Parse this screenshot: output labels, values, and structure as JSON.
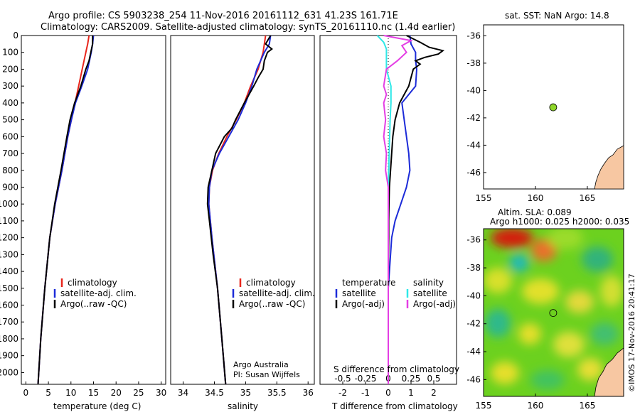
{
  "header": {
    "line1": "Argo profile: CS 5903238_254 11-Nov-2016 20161112_631 41.23S 161.71E",
    "line2": "Climatology: CARS2009. Satellite-adjusted climatology: synTS_20161110.nc (1.4d earlier)"
  },
  "watermark": "©IMOS 17-Nov-2016 20:41:17",
  "colors": {
    "clim": "#e8261c",
    "sat": "#1c2bd8",
    "argo": "#000000",
    "cyan": "#2ee8e8",
    "magenta": "#e43ee4",
    "land": "#f7c7a2"
  },
  "chart_data": [
    {
      "type": "line",
      "id": "temperature",
      "xlabel": "temperature (deg C)",
      "ylabel": "",
      "xlim": [
        -1,
        31
      ],
      "ylim": [
        2070,
        0
      ],
      "xticks": [
        "0",
        "5",
        "10",
        "15",
        "20",
        "25",
        "30"
      ],
      "yticks": [
        "0",
        "100",
        "200",
        "300",
        "400",
        "500",
        "600",
        "700",
        "800",
        "900",
        "1000",
        "1100",
        "1200",
        "1300",
        "1400",
        "1500",
        "1600",
        "1700",
        "1800",
        "1900",
        "2000"
      ],
      "legend": [
        "climatology",
        "satellite-adj. clim.",
        "Argo(..raw -QC)"
      ],
      "series": [
        {
          "name": "climatology",
          "depth": [
            0,
            50,
            100,
            200,
            300,
            400,
            500,
            600,
            800,
            1000,
            1200,
            1500,
            1800,
            2070
          ],
          "values": [
            14.0,
            13.7,
            13.3,
            12.5,
            11.7,
            10.9,
            10.1,
            9.3,
            8.0,
            6.5,
            5.3,
            4.2,
            3.3,
            2.7
          ]
        },
        {
          "name": "satellite-adj. clim.",
          "depth": [
            0,
            50,
            100,
            200,
            300,
            400,
            500,
            600,
            800,
            1000,
            1200,
            1500,
            1800,
            2070
          ],
          "values": [
            15.0,
            14.8,
            14.5,
            13.7,
            12.4,
            11.0,
            10.1,
            9.3,
            8.0,
            6.5,
            5.3,
            4.2,
            3.3,
            2.7
          ]
        },
        {
          "name": "Argo(..raw -QC)",
          "depth": [
            0,
            50,
            100,
            150,
            200,
            300,
            400,
            500,
            600,
            800,
            1000,
            1200,
            1500,
            1800,
            2070
          ],
          "values": [
            14.8,
            14.8,
            14.4,
            14.0,
            13.3,
            12.2,
            10.8,
            9.8,
            9.1,
            7.8,
            6.4,
            5.3,
            4.2,
            3.3,
            2.7
          ]
        }
      ]
    },
    {
      "type": "line",
      "id": "salinity",
      "xlabel": "salinity",
      "ylabel": "",
      "xlim": [
        33.8,
        36.1
      ],
      "ylim": [
        2070,
        0
      ],
      "xticks": [
        "34",
        "34.5",
        "35",
        "35.5",
        "36"
      ],
      "legend": [
        "climatology",
        "satellite-adj. clim.",
        "Argo(..raw -QC)"
      ],
      "annotation": [
        "Argo Australia",
        "PI: Susan Wijffels"
      ],
      "series": [
        {
          "name": "climatology",
          "depth": [
            0,
            100,
            200,
            300,
            400,
            500,
            600,
            700,
            800,
            900,
            1000,
            1200,
            1500,
            1800,
            2070
          ],
          "values": [
            35.32,
            35.28,
            35.2,
            35.08,
            34.98,
            34.85,
            34.7,
            34.57,
            34.47,
            34.42,
            34.41,
            34.46,
            34.55,
            34.62,
            34.68
          ]
        },
        {
          "name": "satellite-adj. clim.",
          "depth": [
            0,
            50,
            100,
            200,
            300,
            400,
            500,
            600,
            700,
            800,
            900,
            1000,
            1200,
            1500,
            1800,
            2070
          ],
          "values": [
            35.4,
            35.38,
            35.3,
            35.18,
            35.1,
            35.0,
            34.88,
            34.73,
            34.58,
            34.46,
            34.42,
            34.41,
            34.46,
            34.55,
            34.62,
            34.68
          ]
        },
        {
          "name": "Argo(..raw -QC)",
          "depth": [
            0,
            50,
            80,
            100,
            150,
            200,
            250,
            300,
            400,
            500,
            550,
            600,
            700,
            800,
            900,
            1000,
            1100,
            1200,
            1300,
            1500,
            1800,
            2070
          ],
          "values": [
            35.4,
            35.32,
            35.42,
            35.35,
            35.3,
            35.28,
            35.2,
            35.13,
            34.98,
            34.84,
            34.78,
            34.66,
            34.52,
            34.46,
            34.4,
            34.39,
            34.42,
            34.45,
            34.48,
            34.55,
            34.62,
            34.68
          ]
        }
      ]
    },
    {
      "type": "line",
      "id": "differences",
      "xlabel": "T difference from climatology",
      "x2label": "S difference from climatology",
      "xlim": [
        -3,
        3
      ],
      "ylim": [
        2070,
        0
      ],
      "xticks": [
        "-2",
        "-1",
        "0",
        "1",
        "2"
      ],
      "x2ticks": [
        "-0.5",
        "-0.25",
        "0",
        "0.25",
        "0.5"
      ],
      "legend_temperature": {
        "title": "temperature",
        "items": [
          "satellite",
          "Argo(-adj)"
        ]
      },
      "legend_salinity": {
        "title": "salinity",
        "items": [
          "satellite",
          "Argo(-adj)"
        ]
      },
      "series": [
        {
          "name": "satellite",
          "kind": "temperature",
          "depth": [
            0,
            50,
            100,
            150,
            200,
            300,
            400,
            500,
            600,
            700,
            800,
            900,
            1000,
            1100,
            1200,
            1500,
            2070
          ],
          "values": [
            0.95,
            1.0,
            1.2,
            1.2,
            1.25,
            1.2,
            0.6,
            0.7,
            0.8,
            0.9,
            0.95,
            0.8,
            0.55,
            0.3,
            0.15,
            0.0,
            0.0
          ]
        },
        {
          "name": "Argo(-adj)",
          "kind": "temperature",
          "depth": [
            0,
            40,
            70,
            90,
            110,
            130,
            150,
            170,
            200,
            250,
            300,
            350,
            400,
            500,
            600,
            700,
            800,
            900,
            1000,
            1100,
            1200,
            1300,
            1500,
            2070
          ],
          "values": [
            0.8,
            1.4,
            1.8,
            2.4,
            2.2,
            1.6,
            1.2,
            1.4,
            1.1,
            1.0,
            0.9,
            0.7,
            0.5,
            0.3,
            0.2,
            0.15,
            0.1,
            0.05,
            0.03,
            0.02,
            0.02,
            0.01,
            0.0,
            0.0
          ]
        },
        {
          "name": "satellite",
          "kind": "salinity",
          "depth": [
            0,
            40,
            80,
            120,
            200,
            300,
            400,
            500,
            700,
            900,
            1100,
            1300,
            1500,
            2070
          ],
          "values": [
            -0.12,
            -0.05,
            -0.02,
            -0.02,
            -0.02,
            0.03,
            0.03,
            0.02,
            0.01,
            0.0,
            0.0,
            0.0,
            0.0,
            0.0
          ]
        },
        {
          "name": "Argo(-adj)",
          "kind": "salinity",
          "depth": [
            0,
            30,
            60,
            100,
            150,
            200,
            300,
            350,
            400,
            500,
            600,
            700,
            800,
            900,
            1000,
            1200,
            1500,
            2070
          ],
          "values": [
            -0.05,
            0.25,
            0.15,
            0.2,
            0.1,
            -0.02,
            -0.05,
            -0.02,
            -0.05,
            -0.03,
            -0.05,
            -0.02,
            -0.03,
            0.0,
            0.0,
            0.0,
            0.0,
            0.0
          ]
        }
      ]
    },
    {
      "type": "scatter",
      "id": "sst-map",
      "title": "sat. SST: NaN Argo: 14.8",
      "xlim": [
        155,
        168.5
      ],
      "ylim": [
        -47.2,
        -35.2
      ],
      "xticks": [
        "155",
        "160",
        "165"
      ],
      "yticks": [
        "-36",
        "-38",
        "-40",
        "-42",
        "-44",
        "-46"
      ],
      "points": [
        {
          "lon": 161.71,
          "lat": -41.23
        }
      ]
    },
    {
      "type": "heatmap",
      "id": "sla-map",
      "title": "Altim. SLA: 0.089",
      "subtitle": "Argo h1000: 0.025 h2000: 0.035",
      "xlim": [
        155,
        168.5
      ],
      "ylim": [
        -47.2,
        -35.2
      ],
      "xticks": [
        "155",
        "160",
        "165"
      ],
      "yticks": [
        "-36",
        "-38",
        "-40",
        "-42",
        "-44",
        "-46"
      ],
      "points": [
        {
          "lon": 161.71,
          "lat": -41.23
        }
      ]
    }
  ]
}
